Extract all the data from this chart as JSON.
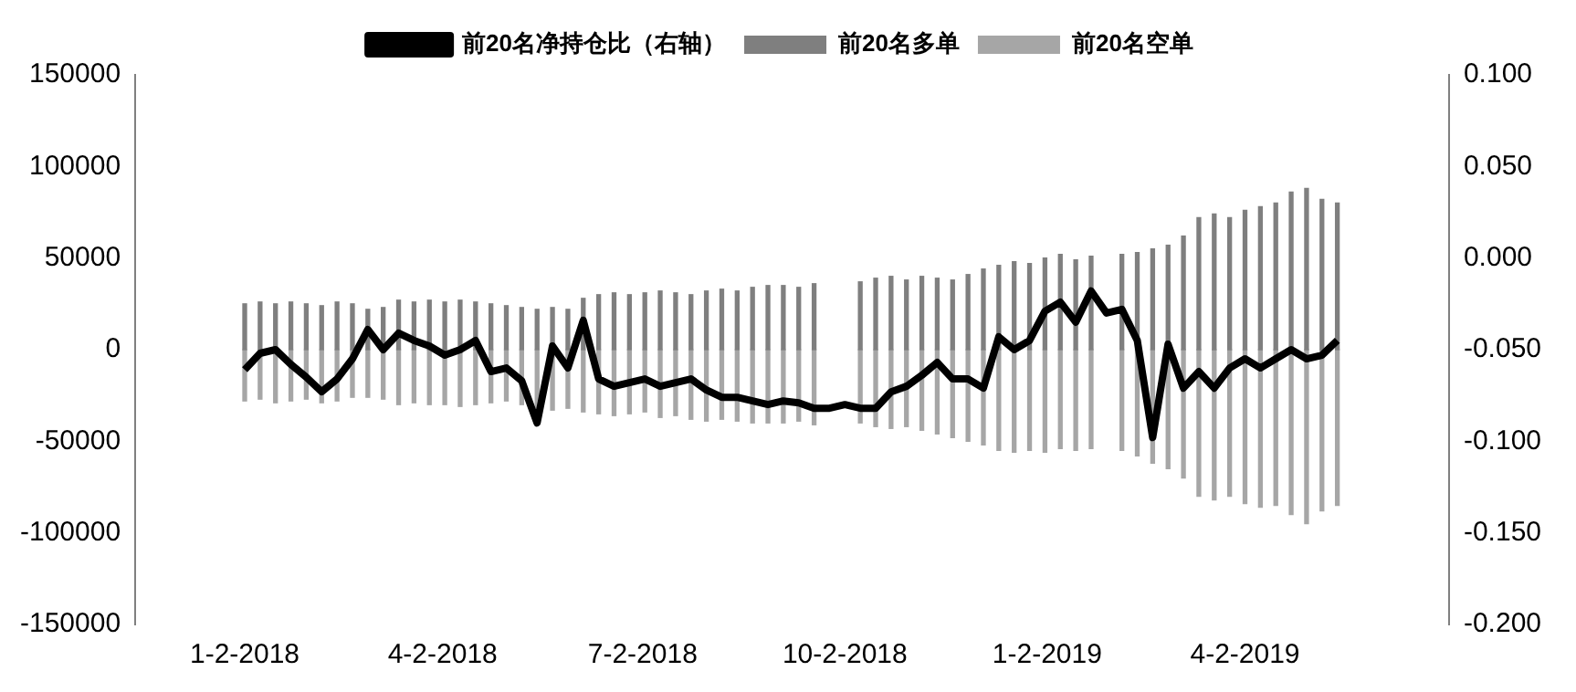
{
  "chart_data": {
    "type": "bar",
    "stacked": true,
    "x": [
      "2018-01-02",
      "2018-01-09",
      "2018-01-16",
      "2018-01-23",
      "2018-01-30",
      "2018-02-06",
      "2018-02-13",
      "2018-02-20",
      "2018-02-27",
      "2018-03-06",
      "2018-03-13",
      "2018-03-20",
      "2018-03-27",
      "2018-04-03",
      "2018-04-10",
      "2018-04-17",
      "2018-04-24",
      "2018-05-01",
      "2018-05-08",
      "2018-05-15",
      "2018-05-22",
      "2018-05-29",
      "2018-06-05",
      "2018-06-12",
      "2018-06-19",
      "2018-06-26",
      "2018-07-03",
      "2018-07-10",
      "2018-07-17",
      "2018-07-24",
      "2018-07-31",
      "2018-08-07",
      "2018-08-14",
      "2018-08-21",
      "2018-08-28",
      "2018-09-04",
      "2018-09-11",
      "2018-09-18",
      "2018-09-25",
      "2018-10-02",
      "2018-10-09",
      "2018-10-16",
      "2018-10-23",
      "2018-10-30",
      "2018-11-06",
      "2018-11-13",
      "2018-11-20",
      "2018-11-27",
      "2018-12-04",
      "2018-12-11",
      "2018-12-18",
      "2018-12-25",
      "2019-01-01",
      "2019-01-08",
      "2019-01-15",
      "2019-01-22",
      "2019-01-29",
      "2019-02-05",
      "2019-02-12",
      "2019-02-19",
      "2019-02-26",
      "2019-03-05",
      "2019-03-12",
      "2019-03-19",
      "2019-03-26",
      "2019-04-02",
      "2019-04-09",
      "2019-04-16",
      "2019-04-23",
      "2019-04-30",
      "2019-05-07",
      "2019-05-14"
    ],
    "series": [
      {
        "name": "前20名多单",
        "color": "#7f7f7f",
        "values": [
          25000,
          26000,
          25000,
          26000,
          25000,
          24000,
          26000,
          25000,
          22000,
          23000,
          27000,
          26000,
          27000,
          26000,
          27000,
          26000,
          25000,
          24000,
          23000,
          22000,
          23000,
          22000,
          28000,
          30000,
          31000,
          30000,
          31000,
          32000,
          31000,
          30000,
          32000,
          33000,
          32000,
          34000,
          35000,
          35000,
          34000,
          36000,
          null,
          null,
          37000,
          39000,
          40000,
          38000,
          40000,
          39000,
          38000,
          41000,
          44000,
          46000,
          48000,
          47000,
          50000,
          52000,
          49000,
          51000,
          null,
          52000,
          53000,
          55000,
          57000,
          62000,
          72000,
          74000,
          72000,
          76000,
          78000,
          80000,
          86000,
          88000,
          82000,
          80000
        ]
      },
      {
        "name": "前20名空单",
        "color": "#a6a6a6",
        "values": [
          -28000,
          -27000,
          -29000,
          -28000,
          -27000,
          -29000,
          -28000,
          -26000,
          -26000,
          -27000,
          -30000,
          -29000,
          -30000,
          -30000,
          -31000,
          -30000,
          -29000,
          -28000,
          -30000,
          -32000,
          -33000,
          -32000,
          -34000,
          -35000,
          -36000,
          -35000,
          -34000,
          -37000,
          -36000,
          -38000,
          -39000,
          -38000,
          -39000,
          -40000,
          -40000,
          -40000,
          -39000,
          -41000,
          null,
          null,
          -40000,
          -42000,
          -43000,
          -42000,
          -44000,
          -46000,
          -48000,
          -50000,
          -52000,
          -55000,
          -56000,
          -55000,
          -56000,
          -54000,
          -55000,
          -54000,
          null,
          -55000,
          -58000,
          -62000,
          -65000,
          -70000,
          -80000,
          -82000,
          -80000,
          -84000,
          -86000,
          -85000,
          -90000,
          -95000,
          -88000,
          -85000
        ]
      },
      {
        "name": "前20名净持仓比（右轴）",
        "type": "line",
        "axis": "y2",
        "color": "#000000",
        "values": [
          -0.061,
          -0.052,
          -0.05,
          -0.058,
          -0.065,
          -0.073,
          -0.066,
          -0.055,
          -0.039,
          -0.05,
          -0.041,
          -0.045,
          -0.048,
          -0.053,
          -0.05,
          -0.045,
          -0.062,
          -0.06,
          -0.067,
          -0.09,
          -0.048,
          -0.06,
          -0.034,
          -0.066,
          -0.07,
          -0.068,
          -0.066,
          -0.07,
          -0.068,
          -0.066,
          -0.072,
          -0.076,
          -0.076,
          -0.078,
          -0.08,
          -0.078,
          -0.079,
          -0.082,
          -0.082,
          -0.08,
          -0.082,
          -0.082,
          -0.073,
          -0.07,
          -0.064,
          -0.057,
          -0.066,
          -0.066,
          -0.071,
          -0.043,
          -0.05,
          -0.045,
          -0.029,
          -0.024,
          -0.035,
          -0.018,
          -0.03,
          -0.028,
          -0.045,
          -0.098,
          -0.047,
          -0.071,
          -0.062,
          -0.071,
          -0.06,
          -0.055,
          -0.06,
          -0.055,
          -0.05,
          -0.055,
          -0.053,
          -0.045
        ]
      }
    ],
    "xlim": [
      "2018-01-02",
      "2019-05-15"
    ],
    "xticks": [
      {
        "value": "2018-01-02",
        "label": "1-2-2018"
      },
      {
        "value": "2018-04-02",
        "label": "4-2-2018"
      },
      {
        "value": "2018-07-02",
        "label": "7-2-2018"
      },
      {
        "value": "2018-10-02",
        "label": "10-2-2018"
      },
      {
        "value": "2019-01-02",
        "label": "1-2-2019"
      },
      {
        "value": "2019-04-02",
        "label": "4-2-2019"
      }
    ],
    "ylim": [
      -150000,
      150000
    ],
    "yticks": [
      -150000,
      -100000,
      -50000,
      0,
      50000,
      100000,
      150000
    ],
    "y2lim": [
      -0.2,
      0.1
    ],
    "y2ticks": [
      {
        "value": -0.2,
        "label": "-0.200"
      },
      {
        "value": -0.15,
        "label": "-0.150"
      },
      {
        "value": -0.1,
        "label": "-0.100"
      },
      {
        "value": -0.05,
        "label": "-0.050"
      },
      {
        "value": 0,
        "label": "0.000"
      },
      {
        "value": 0.05,
        "label": "0.050"
      },
      {
        "value": 0.1,
        "label": "0.100"
      }
    ],
    "grid": false,
    "legend": "top",
    "marker": "none",
    "line_style": "solid"
  }
}
